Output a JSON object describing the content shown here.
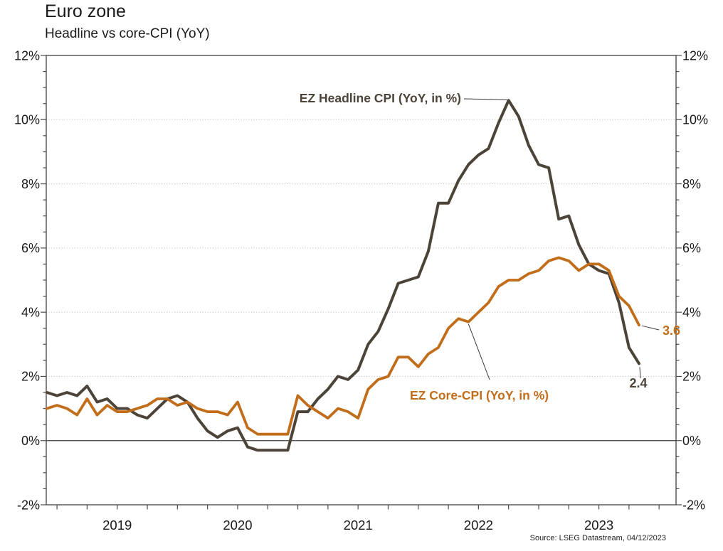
{
  "chart_data": {
    "type": "line",
    "title": "Euro zone",
    "subtitle": "Headline vs core-CPI (YoY)",
    "source": "Source: LSEG Datastream, 04/12/2023",
    "x_range": {
      "start": "Dec 2018",
      "end": "Nov 2023",
      "frequency": "monthly"
    },
    "x_year_labels": [
      "2019",
      "2020",
      "2021",
      "2022",
      "2023"
    ],
    "ylim": [
      -2,
      12
    ],
    "y_ticks": {
      "values": [
        12,
        10,
        8,
        6,
        4,
        2,
        0,
        -2
      ],
      "labels": [
        "12%",
        "10%",
        "8%",
        "6%",
        "4%",
        "2%",
        "0%",
        "-2%"
      ]
    },
    "grid_values": [
      10,
      8,
      6,
      4,
      2
    ],
    "zero_line": 0,
    "grid_style": "dotted",
    "legend_position": "annotations-on-chart",
    "series": [
      {
        "name": "EZ Headline CPI (YoY, in %)",
        "color": "#4d4439",
        "end_label": "2.4",
        "values": [
          1.5,
          1.4,
          1.5,
          1.4,
          1.7,
          1.2,
          1.3,
          1.0,
          1.0,
          0.8,
          0.7,
          1.0,
          1.3,
          1.4,
          1.2,
          0.7,
          0.3,
          0.1,
          0.3,
          0.4,
          -0.2,
          -0.3,
          -0.3,
          -0.3,
          -0.3,
          0.9,
          0.9,
          1.3,
          1.6,
          2.0,
          1.9,
          2.2,
          3.0,
          3.4,
          4.1,
          4.9,
          5.0,
          5.1,
          5.9,
          7.4,
          7.4,
          8.1,
          8.6,
          8.9,
          9.1,
          9.9,
          10.6,
          10.1,
          9.2,
          8.6,
          8.5,
          6.9,
          7.0,
          6.1,
          5.5,
          5.3,
          5.2,
          4.3,
          2.9,
          2.4
        ]
      },
      {
        "name": "EZ Core-CPI (YoY, in %)",
        "color": "#c16d1a",
        "end_label": "3.6",
        "values": [
          1.0,
          1.1,
          1.0,
          0.8,
          1.3,
          0.8,
          1.1,
          0.9,
          0.9,
          1.0,
          1.1,
          1.3,
          1.3,
          1.1,
          1.2,
          1.0,
          0.9,
          0.9,
          0.8,
          1.2,
          0.4,
          0.2,
          0.2,
          0.2,
          0.2,
          1.4,
          1.1,
          0.9,
          0.7,
          1.0,
          0.9,
          0.7,
          1.6,
          1.9,
          2.0,
          2.6,
          2.6,
          2.3,
          2.7,
          2.9,
          3.5,
          3.8,
          3.7,
          4.0,
          4.3,
          4.8,
          5.0,
          5.0,
          5.2,
          5.3,
          5.6,
          5.7,
          5.6,
          5.3,
          5.5,
          5.5,
          5.3,
          4.5,
          4.2,
          3.6
        ]
      }
    ],
    "annotation_targets": {
      "headline_label_points_to_index": 46,
      "core_label_points_to_index": 42
    }
  }
}
